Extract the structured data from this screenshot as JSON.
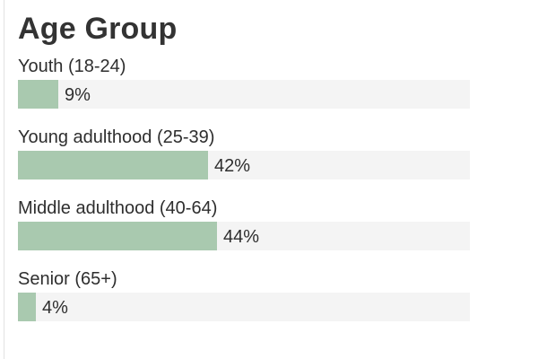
{
  "colors": {
    "bar_fill": "#a9c9af",
    "track": "#f4f4f4"
  },
  "chart_data": {
    "type": "bar",
    "orientation": "horizontal",
    "title": "Age Group",
    "categories": [
      "Youth (18-24)",
      "Young adulthood (25-39)",
      "Middle adulthood (40-64)",
      "Senior (65+)"
    ],
    "values": [
      9,
      42,
      44,
      4
    ],
    "value_labels": [
      "9%",
      "42%",
      "44%",
      "4%"
    ],
    "unit": "%",
    "xlim": [
      0,
      100
    ]
  }
}
